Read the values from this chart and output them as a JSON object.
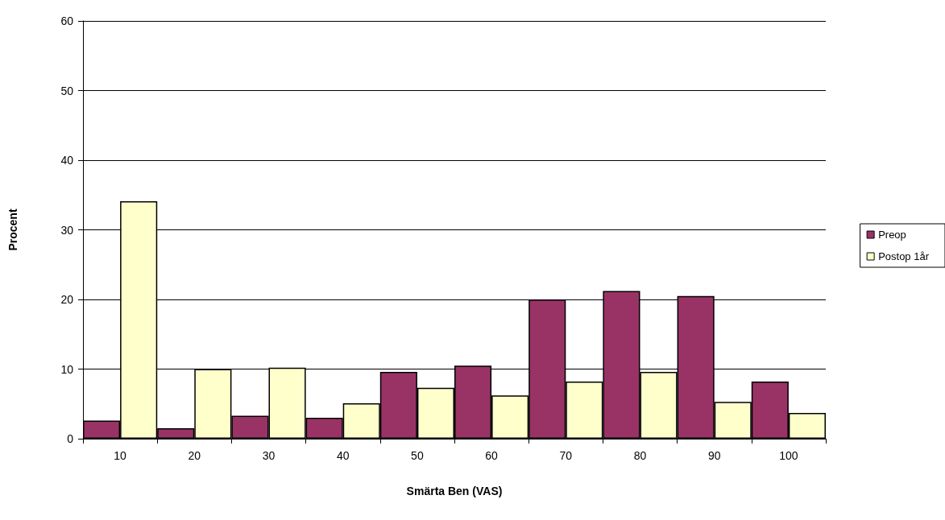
{
  "chart_data": {
    "type": "bar",
    "xlabel": "Smärta Ben (VAS)",
    "ylabel": "Procent",
    "categories": [
      "10",
      "20",
      "30",
      "40",
      "50",
      "60",
      "70",
      "80",
      "90",
      "100"
    ],
    "series": [
      {
        "name": "Preop",
        "color": "#993366",
        "values": [
          2.6,
          1.5,
          3.3,
          3.0,
          9.6,
          10.5,
          20.0,
          21.2,
          20.5,
          8.2
        ]
      },
      {
        "name": "Postop 1år",
        "color": "#ffffcc",
        "values": [
          34.1,
          10.0,
          10.2,
          5.1,
          7.3,
          6.2,
          8.2,
          9.6,
          5.3,
          3.7
        ]
      }
    ],
    "ylim": [
      0,
      60
    ],
    "yticks": [
      0,
      10,
      20,
      30,
      40,
      50,
      60
    ],
    "grid": "y",
    "legend": "right"
  }
}
